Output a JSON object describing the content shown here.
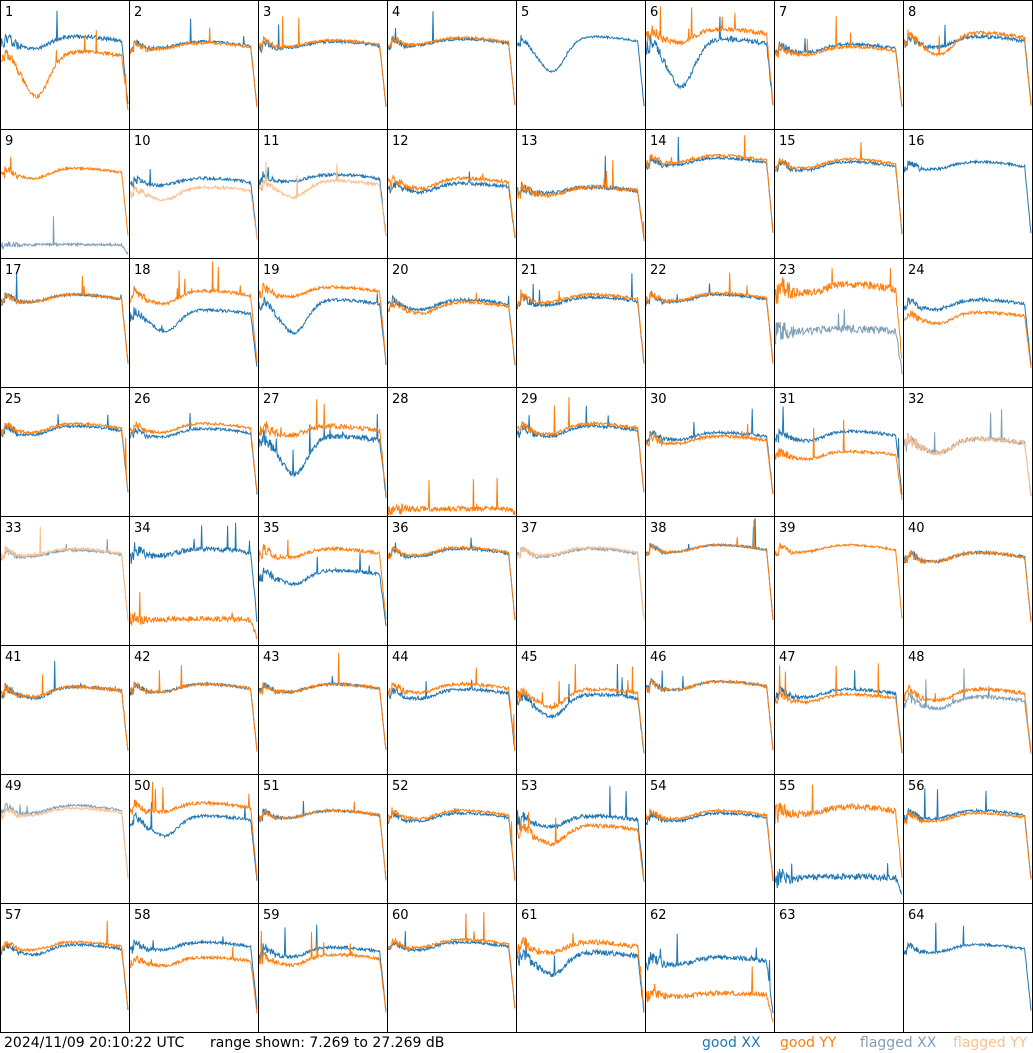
{
  "timestamp": "2024/11/09 20:10:22 UTC",
  "range_text": "range shown: 7.269 to 27.269 dB",
  "legend": {
    "good_xx": "good XX",
    "good_yy": "good YY",
    "flagged_xx": "flagged XX",
    "flagged_yy": "flagged YY"
  },
  "colors": {
    "good_xx": "#1f77b4",
    "good_yy": "#ff7f0e",
    "flagged_xx": "#7f9fb9",
    "flagged_yy": "#fbc08e",
    "frame": "#000000",
    "background": "#ffffff"
  },
  "chart_data": {
    "type": "line",
    "grid_layout": "8x8 small multiples",
    "y_range_db": [
      7.269,
      27.269
    ],
    "grid": false,
    "legend_placement": "bottom-right",
    "panel_labels": [
      "1",
      "2",
      "3",
      "4",
      "5",
      "6",
      "7",
      "8",
      "9",
      "10",
      "11",
      "12",
      "13",
      "14",
      "15",
      "16",
      "17",
      "18",
      "19",
      "20",
      "21",
      "22",
      "23",
      "24",
      "25",
      "26",
      "27",
      "28",
      "29",
      "30",
      "31",
      "32",
      "33",
      "34",
      "35",
      "36",
      "37",
      "38",
      "39",
      "40",
      "41",
      "42",
      "43",
      "44",
      "45",
      "46",
      "47",
      "48",
      "49",
      "50",
      "51",
      "52",
      "53",
      "54",
      "55",
      "56",
      "57",
      "58",
      "59",
      "60",
      "61",
      "62",
      "63",
      "64"
    ],
    "series_names": [
      "good XX",
      "good YY",
      "flagged XX",
      "flagged YY"
    ],
    "shape_x": [
      0,
      0.03,
      0.06,
      0.1,
      0.15,
      0.2,
      0.25,
      0.3,
      0.35,
      0.4,
      0.45,
      0.5,
      0.55,
      0.6,
      0.65,
      0.7,
      0.75,
      0.8,
      0.85,
      0.9,
      0.93,
      0.95,
      0.97,
      1.0
    ],
    "panels": [
      {
        "id": 1,
        "xx_status": "good",
        "yy_status": "good",
        "xx_level": 0.72,
        "yy_level": 0.6,
        "xx_dip": 0.1,
        "yy_dip": 0.55,
        "noise": 0.8
      },
      {
        "id": 2,
        "xx_status": "good",
        "yy_status": "good",
        "xx_level": 0.68,
        "yy_level": 0.67,
        "xx_dip": 0.03,
        "yy_dip": 0.03,
        "noise": 0.5
      },
      {
        "id": 3,
        "xx_status": "good",
        "yy_status": "good",
        "xx_level": 0.68,
        "yy_level": 0.69,
        "xx_dip": 0.03,
        "yy_dip": 0.03,
        "noise": 0.5
      },
      {
        "id": 4,
        "xx_status": "good",
        "yy_status": "good",
        "xx_level": 0.7,
        "yy_level": 0.71,
        "xx_dip": 0.03,
        "yy_dip": 0.03,
        "noise": 0.5
      },
      {
        "id": 5,
        "xx_status": "good",
        "yy_status": "good",
        "xx_level": 0.72,
        "yy_level": 0.0,
        "xx_dip": 0.35,
        "yy_dip": 0.0,
        "noise": 0.4
      },
      {
        "id": 6,
        "xx_status": "good",
        "yy_status": "good",
        "xx_level": 0.7,
        "yy_level": 0.78,
        "xx_dip": 0.5,
        "yy_dip": 0.1,
        "noise": 0.9
      },
      {
        "id": 7,
        "xx_status": "good",
        "yy_status": "good",
        "xx_level": 0.66,
        "yy_level": 0.64,
        "xx_dip": 0.06,
        "yy_dip": 0.06,
        "noise": 0.6
      },
      {
        "id": 8,
        "xx_status": "good",
        "yy_status": "good",
        "xx_level": 0.72,
        "yy_level": 0.75,
        "xx_dip": 0.08,
        "yy_dip": 0.2,
        "noise": 0.7
      },
      {
        "id": 9,
        "xx_status": "flagged",
        "yy_status": "good",
        "xx_level": 0.1,
        "yy_level": 0.7,
        "xx_dip": 0.0,
        "yy_dip": 0.08,
        "noise": 0.5
      },
      {
        "id": 10,
        "xx_status": "good",
        "yy_status": "flagged",
        "xx_level": 0.62,
        "yy_level": 0.55,
        "xx_dip": 0.05,
        "yy_dip": 0.15,
        "noise": 0.6
      },
      {
        "id": 11,
        "xx_status": "good",
        "yy_status": "flagged",
        "xx_level": 0.65,
        "yy_level": 0.6,
        "xx_dip": 0.05,
        "yy_dip": 0.18,
        "noise": 0.6
      },
      {
        "id": 12,
        "xx_status": "good",
        "yy_status": "good",
        "xx_level": 0.58,
        "yy_level": 0.62,
        "xx_dip": 0.08,
        "yy_dip": 0.1,
        "noise": 0.7
      },
      {
        "id": 13,
        "xx_status": "good",
        "yy_status": "good",
        "xx_level": 0.55,
        "yy_level": 0.55,
        "xx_dip": 0.05,
        "yy_dip": 0.08,
        "noise": 0.8
      },
      {
        "id": 14,
        "xx_status": "good",
        "yy_status": "good",
        "xx_level": 0.78,
        "yy_level": 0.8,
        "xx_dip": 0.03,
        "yy_dip": 0.03,
        "noise": 0.5
      },
      {
        "id": 15,
        "xx_status": "good",
        "yy_status": "good",
        "xx_level": 0.75,
        "yy_level": 0.77,
        "xx_dip": 0.05,
        "yy_dip": 0.05,
        "noise": 0.5
      },
      {
        "id": 16,
        "xx_status": "good",
        "yy_status": "flagged",
        "xx_level": 0.75,
        "yy_level": 0.0,
        "xx_dip": 0.04,
        "yy_dip": 0.0,
        "noise": 0.5
      },
      {
        "id": 17,
        "xx_status": "good",
        "yy_status": "good",
        "xx_level": 0.72,
        "yy_level": 0.72,
        "xx_dip": 0.04,
        "yy_dip": 0.04,
        "noise": 0.5
      },
      {
        "id": 18,
        "xx_status": "good",
        "yy_status": "good",
        "xx_level": 0.6,
        "yy_level": 0.75,
        "xx_dip": 0.25,
        "yy_dip": 0.1,
        "noise": 0.6
      },
      {
        "id": 19,
        "xx_status": "good",
        "yy_status": "good",
        "xx_level": 0.68,
        "yy_level": 0.78,
        "xx_dip": 0.35,
        "yy_dip": 0.06,
        "noise": 0.6
      },
      {
        "id": 20,
        "xx_status": "good",
        "yy_status": "good",
        "xx_level": 0.68,
        "yy_level": 0.66,
        "xx_dip": 0.08,
        "yy_dip": 0.1,
        "noise": 0.6
      },
      {
        "id": 21,
        "xx_status": "good",
        "yy_status": "good",
        "xx_level": 0.7,
        "yy_level": 0.72,
        "xx_dip": 0.05,
        "yy_dip": 0.05,
        "noise": 0.6
      },
      {
        "id": 22,
        "xx_status": "good",
        "yy_status": "good",
        "xx_level": 0.72,
        "yy_level": 0.73,
        "xx_dip": 0.04,
        "yy_dip": 0.04,
        "noise": 0.5
      },
      {
        "id": 23,
        "xx_status": "flagged",
        "yy_status": "good",
        "xx_level": 0.45,
        "yy_level": 0.8,
        "xx_dip": 0.0,
        "yy_dip": 0.05,
        "noise": 1.5
      },
      {
        "id": 24,
        "xx_status": "good",
        "yy_status": "good",
        "xx_level": 0.68,
        "yy_level": 0.58,
        "xx_dip": 0.08,
        "yy_dip": 0.12,
        "noise": 0.6
      },
      {
        "id": 25,
        "xx_status": "good",
        "yy_status": "good",
        "xx_level": 0.7,
        "yy_level": 0.72,
        "xx_dip": 0.06,
        "yy_dip": 0.06,
        "noise": 0.5
      },
      {
        "id": 26,
        "xx_status": "good",
        "yy_status": "good",
        "xx_level": 0.68,
        "yy_level": 0.72,
        "xx_dip": 0.06,
        "yy_dip": 0.06,
        "noise": 0.5
      },
      {
        "id": 27,
        "xx_status": "good",
        "yy_status": "good",
        "xx_level": 0.62,
        "yy_level": 0.7,
        "xx_dip": 0.45,
        "yy_dip": 0.06,
        "noise": 1.0
      },
      {
        "id": 28,
        "xx_status": "good",
        "yy_status": "good",
        "xx_level": 0.0,
        "yy_level": 0.05,
        "xx_dip": 0.0,
        "yy_dip": 0.0,
        "noise": 1.0
      },
      {
        "id": 29,
        "xx_status": "good",
        "yy_status": "good",
        "xx_level": 0.7,
        "yy_level": 0.72,
        "xx_dip": 0.08,
        "yy_dip": 0.08,
        "noise": 0.6
      },
      {
        "id": 30,
        "xx_status": "good",
        "yy_status": "good",
        "xx_level": 0.65,
        "yy_level": 0.62,
        "xx_dip": 0.05,
        "yy_dip": 0.05,
        "noise": 0.6
      },
      {
        "id": 31,
        "xx_status": "good",
        "yy_status": "good",
        "xx_level": 0.66,
        "yy_level": 0.5,
        "xx_dip": 0.08,
        "yy_dip": 0.08,
        "noise": 0.6
      },
      {
        "id": 32,
        "xx_status": "flagged",
        "yy_status": "flagged",
        "xx_level": 0.6,
        "yy_level": 0.6,
        "xx_dip": 0.15,
        "yy_dip": 0.15,
        "noise": 0.9
      },
      {
        "id": 33,
        "xx_status": "flagged",
        "yy_status": "flagged",
        "xx_level": 0.74,
        "yy_level": 0.75,
        "xx_dip": 0.03,
        "yy_dip": 0.03,
        "noise": 0.5
      },
      {
        "id": 34,
        "xx_status": "good",
        "yy_status": "good",
        "xx_level": 0.75,
        "yy_level": 0.2,
        "xx_dip": 0.03,
        "yy_dip": 0.0,
        "noise": 1.0
      },
      {
        "id": 35,
        "xx_status": "good",
        "yy_status": "good",
        "xx_level": 0.58,
        "yy_level": 0.75,
        "xx_dip": 0.15,
        "yy_dip": 0.05,
        "noise": 0.7
      },
      {
        "id": 36,
        "xx_status": "good",
        "yy_status": "good",
        "xx_level": 0.75,
        "yy_level": 0.76,
        "xx_dip": 0.04,
        "yy_dip": 0.04,
        "noise": 0.5
      },
      {
        "id": 37,
        "xx_status": "flagged",
        "yy_status": "flagged",
        "xx_level": 0.75,
        "yy_level": 0.76,
        "xx_dip": 0.04,
        "yy_dip": 0.04,
        "noise": 0.5
      },
      {
        "id": 38,
        "xx_status": "good",
        "yy_status": "good",
        "xx_level": 0.78,
        "yy_level": 0.78,
        "xx_dip": 0.03,
        "yy_dip": 0.03,
        "noise": 0.4
      },
      {
        "id": 39,
        "xx_status": "good",
        "yy_status": "good",
        "xx_level": 0.0,
        "yy_level": 0.78,
        "xx_dip": 0.0,
        "yy_dip": 0.03,
        "noise": 0.4
      },
      {
        "id": 40,
        "xx_status": "good",
        "yy_status": "good",
        "xx_level": 0.72,
        "yy_level": 0.72,
        "xx_dip": 0.06,
        "yy_dip": 0.06,
        "noise": 0.6
      },
      {
        "id": 41,
        "xx_status": "good",
        "yy_status": "good",
        "xx_level": 0.68,
        "yy_level": 0.68,
        "xx_dip": 0.1,
        "yy_dip": 0.08,
        "noise": 0.6
      },
      {
        "id": 42,
        "xx_status": "good",
        "yy_status": "good",
        "xx_level": 0.7,
        "yy_level": 0.7,
        "xx_dip": 0.05,
        "yy_dip": 0.05,
        "noise": 0.5
      },
      {
        "id": 43,
        "xx_status": "good",
        "yy_status": "good",
        "xx_level": 0.7,
        "yy_level": 0.7,
        "xx_dip": 0.05,
        "yy_dip": 0.05,
        "noise": 0.5
      },
      {
        "id": 44,
        "xx_status": "good",
        "yy_status": "good",
        "xx_level": 0.66,
        "yy_level": 0.7,
        "xx_dip": 0.08,
        "yy_dip": 0.06,
        "noise": 0.6
      },
      {
        "id": 45,
        "xx_status": "good",
        "yy_status": "good",
        "xx_level": 0.62,
        "yy_level": 0.66,
        "xx_dip": 0.25,
        "yy_dip": 0.18,
        "noise": 0.7
      },
      {
        "id": 46,
        "xx_status": "good",
        "yy_status": "good",
        "xx_level": 0.72,
        "yy_level": 0.72,
        "xx_dip": 0.05,
        "yy_dip": 0.05,
        "noise": 0.5
      },
      {
        "id": 47,
        "xx_status": "good",
        "yy_status": "good",
        "xx_level": 0.66,
        "yy_level": 0.62,
        "xx_dip": 0.06,
        "yy_dip": 0.06,
        "noise": 0.6
      },
      {
        "id": 48,
        "xx_status": "flagged",
        "yy_status": "good",
        "xx_level": 0.6,
        "yy_level": 0.66,
        "xx_dip": 0.12,
        "yy_dip": 0.1,
        "noise": 0.7
      },
      {
        "id": 49,
        "xx_status": "flagged",
        "yy_status": "flagged",
        "xx_level": 0.76,
        "yy_level": 0.74,
        "xx_dip": 0.04,
        "yy_dip": 0.04,
        "noise": 0.5
      },
      {
        "id": 50,
        "xx_status": "good",
        "yy_status": "good",
        "xx_level": 0.68,
        "yy_level": 0.78,
        "xx_dip": 0.2,
        "yy_dip": 0.05,
        "noise": 0.6
      },
      {
        "id": 51,
        "xx_status": "good",
        "yy_status": "good",
        "xx_level": 0.72,
        "yy_level": 0.72,
        "xx_dip": 0.04,
        "yy_dip": 0.04,
        "noise": 0.5
      },
      {
        "id": 52,
        "xx_status": "good",
        "yy_status": "good",
        "xx_level": 0.7,
        "yy_level": 0.72,
        "xx_dip": 0.05,
        "yy_dip": 0.05,
        "noise": 0.5
      },
      {
        "id": 53,
        "xx_status": "good",
        "yy_status": "good",
        "xx_level": 0.68,
        "yy_level": 0.6,
        "xx_dip": 0.1,
        "yy_dip": 0.2,
        "noise": 0.8
      },
      {
        "id": 54,
        "xx_status": "good",
        "yy_status": "good",
        "xx_level": 0.7,
        "yy_level": 0.72,
        "xx_dip": 0.05,
        "yy_dip": 0.05,
        "noise": 0.5
      },
      {
        "id": 55,
        "xx_status": "good",
        "yy_status": "good",
        "xx_level": 0.2,
        "yy_level": 0.75,
        "xx_dip": 0.0,
        "yy_dip": 0.04,
        "noise": 1.2
      },
      {
        "id": 56,
        "xx_status": "good",
        "yy_status": "good",
        "xx_level": 0.72,
        "yy_level": 0.7,
        "xx_dip": 0.05,
        "yy_dip": 0.05,
        "noise": 0.5
      },
      {
        "id": 57,
        "xx_status": "good",
        "yy_status": "good",
        "xx_level": 0.68,
        "yy_level": 0.7,
        "xx_dip": 0.08,
        "yy_dip": 0.05,
        "noise": 0.5
      },
      {
        "id": 58,
        "xx_status": "good",
        "yy_status": "good",
        "xx_level": 0.7,
        "yy_level": 0.58,
        "xx_dip": 0.05,
        "yy_dip": 0.08,
        "noise": 0.6
      },
      {
        "id": 59,
        "xx_status": "good",
        "yy_status": "good",
        "xx_level": 0.66,
        "yy_level": 0.6,
        "xx_dip": 0.08,
        "yy_dip": 0.1,
        "noise": 0.6
      },
      {
        "id": 60,
        "xx_status": "good",
        "yy_status": "good",
        "xx_level": 0.7,
        "yy_level": 0.72,
        "xx_dip": 0.05,
        "yy_dip": 0.05,
        "noise": 0.5
      },
      {
        "id": 61,
        "xx_status": "good",
        "yy_status": "good",
        "xx_level": 0.62,
        "yy_level": 0.7,
        "xx_dip": 0.25,
        "yy_dip": 0.08,
        "noise": 1.0
      },
      {
        "id": 62,
        "xx_status": "good",
        "yy_status": "good",
        "xx_level": 0.58,
        "yy_level": 0.3,
        "xx_dip": 0.06,
        "yy_dip": 0.06,
        "noise": 0.9
      },
      {
        "id": 63,
        "xx_status": "good",
        "yy_status": "good",
        "xx_level": 0.0,
        "yy_level": 0.0,
        "xx_dip": 0.0,
        "yy_dip": 0.0,
        "noise": 1.0
      },
      {
        "id": 64,
        "xx_status": "good",
        "yy_status": "flagged",
        "xx_level": 0.68,
        "yy_level": 0.0,
        "xx_dip": 0.05,
        "yy_dip": 0.0,
        "noise": 0.5
      }
    ]
  }
}
